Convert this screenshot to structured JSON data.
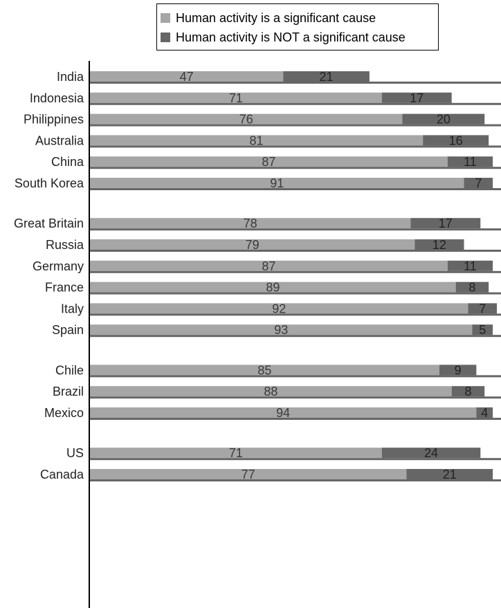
{
  "legend": {
    "items": [
      {
        "label": "Human activity is a significant cause",
        "color": "#a6a6a6"
      },
      {
        "label": "Human activity is NOT a significant cause",
        "color": "#666666"
      }
    ]
  },
  "chart_data": {
    "type": "bar",
    "orientation": "horizontal",
    "stacked": true,
    "title": "",
    "xlabel": "",
    "ylabel": "",
    "xlim": [
      0,
      100
    ],
    "legend_position": "top",
    "groups": [
      {
        "categories": [
          "India",
          "Indonesia",
          "Philippines",
          "Australia",
          "China",
          "South Korea"
        ]
      },
      {
        "categories": [
          "Great Britain",
          "Russia",
          "Germany",
          "France",
          "Italy",
          "Spain"
        ]
      },
      {
        "categories": [
          "Chile",
          "Brazil",
          "Mexico"
        ]
      },
      {
        "categories": [
          "US",
          "Canada"
        ]
      }
    ],
    "categories": [
      "India",
      "Indonesia",
      "Philippines",
      "Australia",
      "China",
      "South Korea",
      "Great Britain",
      "Russia",
      "Germany",
      "France",
      "Italy",
      "Spain",
      "Chile",
      "Brazil",
      "Mexico",
      "US",
      "Canada"
    ],
    "series": [
      {
        "name": "Human activity is a significant cause",
        "color": "#a6a6a6",
        "values": [
          47,
          71,
          76,
          81,
          87,
          91,
          78,
          79,
          87,
          89,
          92,
          93,
          85,
          88,
          94,
          71,
          77
        ]
      },
      {
        "name": "Human activity is NOT a significant cause",
        "color": "#666666",
        "values": [
          21,
          17,
          20,
          16,
          11,
          7,
          17,
          12,
          11,
          8,
          7,
          5,
          9,
          8,
          4,
          24,
          21
        ]
      }
    ]
  }
}
